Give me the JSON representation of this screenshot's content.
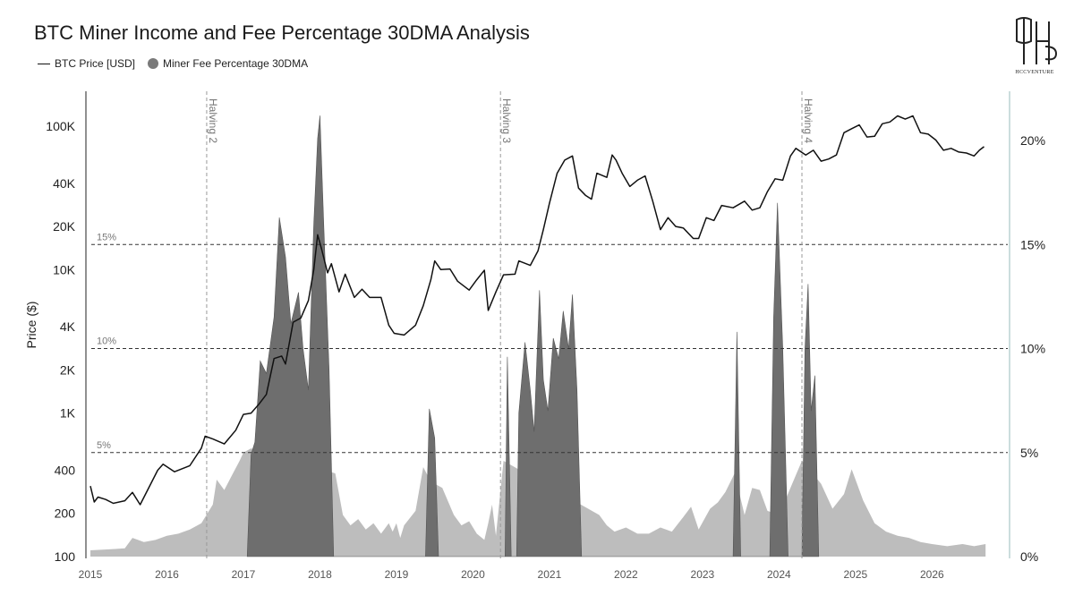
{
  "title": "BTC Miner Income and Fee Percentage 30DMA Analysis",
  "legend": [
    {
      "label": "BTC Price [USD]",
      "kind": "line"
    },
    {
      "label": "Miner Fee Percentage 30DMA",
      "kind": "dot"
    }
  ],
  "logo_text": "HCCVENTURE",
  "colors": {
    "price_line": "#111111",
    "fee_light": "#bdbdbd",
    "fee_dark": "#6e6e6e",
    "ref_line": "#333333",
    "halving_line": "#999999"
  },
  "chart_data": {
    "type": "line",
    "x_range": [
      2015.0,
      2026.85
    ],
    "x_ticks": [
      "2015",
      "2016",
      "2017",
      "2018",
      "2019",
      "2020",
      "2021",
      "2022",
      "2023",
      "2024",
      "2025",
      "2026"
    ],
    "y_left": {
      "label": "Price ($)",
      "scale": "log",
      "range": [
        100,
        200000
      ],
      "ticks": [
        {
          "v": 100,
          "t": "100"
        },
        {
          "v": 200,
          "t": "200"
        },
        {
          "v": 400,
          "t": "400"
        },
        {
          "v": 1000,
          "t": "1K"
        },
        {
          "v": 2000,
          "t": "2K"
        },
        {
          "v": 4000,
          "t": "4K"
        },
        {
          "v": 10000,
          "t": "10K"
        },
        {
          "v": 20000,
          "t": "20K"
        },
        {
          "v": 40000,
          "t": "40K"
        },
        {
          "v": 100000,
          "t": "100K"
        }
      ]
    },
    "y_right": {
      "range": [
        0,
        22.5
      ],
      "ticks": [
        {
          "v": 0,
          "t": "0%"
        },
        {
          "v": 5,
          "t": "5%"
        },
        {
          "v": 10,
          "t": "10%"
        },
        {
          "v": 15,
          "t": "15%"
        },
        {
          "v": 20,
          "t": "20%"
        }
      ]
    },
    "reference_lines": [
      {
        "v": 5,
        "label": "5%"
      },
      {
        "v": 10,
        "label": "10%"
      },
      {
        "v": 15,
        "label": "15%"
      }
    ],
    "halvings": [
      {
        "x": 2016.52,
        "label": "Halving 2"
      },
      {
        "x": 2020.36,
        "label": "Halving 3"
      },
      {
        "x": 2024.3,
        "label": "Halving 4"
      }
    ],
    "series": [
      {
        "name": "BTC Price [USD]",
        "points": [
          [
            2015.0,
            310
          ],
          [
            2015.05,
            240
          ],
          [
            2015.1,
            260
          ],
          [
            2015.2,
            250
          ],
          [
            2015.3,
            235
          ],
          [
            2015.45,
            245
          ],
          [
            2015.55,
            280
          ],
          [
            2015.65,
            230
          ],
          [
            2015.8,
            330
          ],
          [
            2015.88,
            400
          ],
          [
            2015.95,
            440
          ],
          [
            2016.1,
            390
          ],
          [
            2016.3,
            430
          ],
          [
            2016.45,
            570
          ],
          [
            2016.5,
            690
          ],
          [
            2016.6,
            660
          ],
          [
            2016.75,
            610
          ],
          [
            2016.9,
            760
          ],
          [
            2017.0,
            980
          ],
          [
            2017.1,
            1000
          ],
          [
            2017.2,
            1150
          ],
          [
            2017.3,
            1350
          ],
          [
            2017.4,
            2400
          ],
          [
            2017.5,
            2500
          ],
          [
            2017.55,
            2200
          ],
          [
            2017.65,
            4300
          ],
          [
            2017.75,
            4600
          ],
          [
            2017.85,
            6100
          ],
          [
            2017.92,
            10000
          ],
          [
            2017.97,
            17500
          ],
          [
            2018.02,
            14000
          ],
          [
            2018.1,
            9500
          ],
          [
            2018.15,
            11000
          ],
          [
            2018.25,
            7000
          ],
          [
            2018.33,
            9300
          ],
          [
            2018.45,
            6400
          ],
          [
            2018.55,
            7300
          ],
          [
            2018.65,
            6400
          ],
          [
            2018.8,
            6400
          ],
          [
            2018.9,
            4100
          ],
          [
            2018.97,
            3600
          ],
          [
            2019.1,
            3500
          ],
          [
            2019.25,
            4100
          ],
          [
            2019.35,
            5600
          ],
          [
            2019.45,
            8500
          ],
          [
            2019.5,
            11500
          ],
          [
            2019.58,
            10000
          ],
          [
            2019.7,
            10100
          ],
          [
            2019.8,
            8300
          ],
          [
            2019.95,
            7200
          ],
          [
            2020.05,
            8500
          ],
          [
            2020.15,
            9900
          ],
          [
            2020.2,
            5200
          ],
          [
            2020.3,
            7000
          ],
          [
            2020.4,
            9200
          ],
          [
            2020.55,
            9300
          ],
          [
            2020.6,
            11500
          ],
          [
            2020.75,
            10700
          ],
          [
            2020.85,
            13500
          ],
          [
            2020.92,
            19000
          ],
          [
            2021.0,
            29000
          ],
          [
            2021.1,
            47000
          ],
          [
            2021.2,
            58000
          ],
          [
            2021.3,
            62000
          ],
          [
            2021.38,
            37000
          ],
          [
            2021.47,
            33000
          ],
          [
            2021.55,
            31000
          ],
          [
            2021.62,
            47000
          ],
          [
            2021.75,
            44000
          ],
          [
            2021.82,
            63000
          ],
          [
            2021.87,
            58000
          ],
          [
            2021.95,
            47000
          ],
          [
            2022.05,
            38000
          ],
          [
            2022.15,
            42000
          ],
          [
            2022.25,
            45000
          ],
          [
            2022.35,
            30000
          ],
          [
            2022.45,
            19000
          ],
          [
            2022.55,
            23000
          ],
          [
            2022.65,
            20000
          ],
          [
            2022.75,
            19500
          ],
          [
            2022.88,
            16500
          ],
          [
            2022.95,
            16500
          ],
          [
            2023.05,
            23000
          ],
          [
            2023.15,
            22000
          ],
          [
            2023.25,
            28000
          ],
          [
            2023.4,
            27000
          ],
          [
            2023.55,
            30000
          ],
          [
            2023.65,
            26000
          ],
          [
            2023.75,
            27000
          ],
          [
            2023.85,
            35000
          ],
          [
            2023.95,
            43000
          ],
          [
            2024.05,
            42000
          ],
          [
            2024.15,
            62000
          ],
          [
            2024.22,
            70000
          ],
          [
            2024.35,
            63000
          ],
          [
            2024.45,
            68000
          ],
          [
            2024.55,
            57000
          ],
          [
            2024.65,
            59000
          ],
          [
            2024.75,
            63000
          ],
          [
            2024.85,
            90000
          ],
          [
            2024.95,
            96000
          ],
          [
            2025.05,
            102000
          ],
          [
            2025.15,
            84000
          ],
          [
            2025.25,
            85000
          ],
          [
            2025.35,
            104000
          ],
          [
            2025.45,
            107000
          ],
          [
            2025.55,
            118000
          ],
          [
            2025.65,
            112000
          ],
          [
            2025.75,
            118000
          ],
          [
            2025.85,
            90000
          ],
          [
            2025.95,
            88000
          ],
          [
            2026.05,
            80000
          ],
          [
            2026.15,
            68000
          ],
          [
            2026.25,
            70000
          ],
          [
            2026.35,
            66000
          ],
          [
            2026.45,
            65000
          ],
          [
            2026.55,
            62000
          ],
          [
            2026.62,
            68000
          ],
          [
            2026.68,
            72000
          ]
        ]
      },
      {
        "name": "Miner Fee Percentage 30DMA",
        "style": "light",
        "points": [
          [
            2015.0,
            0.3
          ],
          [
            2015.25,
            0.35
          ],
          [
            2015.45,
            0.4
          ],
          [
            2015.55,
            0.9
          ],
          [
            2015.7,
            0.7
          ],
          [
            2015.85,
            0.8
          ],
          [
            2016.0,
            1.0
          ],
          [
            2016.15,
            1.1
          ],
          [
            2016.3,
            1.3
          ],
          [
            2016.45,
            1.6
          ],
          [
            2016.6,
            2.5
          ],
          [
            2016.65,
            3.7
          ],
          [
            2016.75,
            3.2
          ],
          [
            2016.85,
            3.9
          ],
          [
            2016.95,
            4.6
          ],
          [
            2017.0,
            5.0
          ],
          [
            2017.1,
            5.2
          ],
          [
            2018.2,
            4.0
          ],
          [
            2018.3,
            2.0
          ],
          [
            2018.4,
            1.5
          ],
          [
            2018.5,
            1.8
          ],
          [
            2018.6,
            1.3
          ],
          [
            2018.7,
            1.6
          ],
          [
            2018.8,
            1.1
          ],
          [
            2018.9,
            1.6
          ],
          [
            2018.95,
            1.2
          ],
          [
            2019.0,
            1.6
          ],
          [
            2019.05,
            0.9
          ],
          [
            2019.1,
            1.5
          ],
          [
            2019.25,
            2.2
          ],
          [
            2019.35,
            4.3
          ],
          [
            2019.45,
            3.6
          ],
          [
            2019.6,
            3.3
          ],
          [
            2019.75,
            2.0
          ],
          [
            2019.85,
            1.5
          ],
          [
            2019.95,
            1.7
          ],
          [
            2020.05,
            1.1
          ],
          [
            2020.15,
            0.8
          ],
          [
            2020.2,
            1.6
          ],
          [
            2020.25,
            2.5
          ],
          [
            2020.3,
            1.0
          ],
          [
            2020.4,
            4.6
          ],
          [
            2021.65,
            2.0
          ],
          [
            2021.75,
            1.5
          ],
          [
            2021.85,
            1.2
          ],
          [
            2022.0,
            1.4
          ],
          [
            2022.15,
            1.1
          ],
          [
            2022.3,
            1.1
          ],
          [
            2022.45,
            1.4
          ],
          [
            2022.6,
            1.2
          ],
          [
            2022.75,
            1.9
          ],
          [
            2022.85,
            2.4
          ],
          [
            2022.95,
            1.3
          ],
          [
            2023.1,
            2.3
          ],
          [
            2023.2,
            2.6
          ],
          [
            2023.3,
            3.1
          ],
          [
            2023.42,
            4.0
          ],
          [
            2023.55,
            2.0
          ],
          [
            2023.65,
            3.3
          ],
          [
            2023.75,
            3.2
          ],
          [
            2023.85,
            2.2
          ],
          [
            2024.0,
            2.0
          ],
          [
            2024.3,
            4.6
          ],
          [
            2024.55,
            3.5
          ],
          [
            2024.7,
            2.3
          ],
          [
            2024.85,
            3.0
          ],
          [
            2024.95,
            4.2
          ],
          [
            2025.1,
            2.7
          ],
          [
            2025.25,
            1.6
          ],
          [
            2025.4,
            1.2
          ],
          [
            2025.55,
            1.0
          ],
          [
            2025.7,
            0.9
          ],
          [
            2025.85,
            0.7
          ],
          [
            2026.0,
            0.6
          ],
          [
            2026.2,
            0.5
          ],
          [
            2026.4,
            0.6
          ],
          [
            2026.55,
            0.5
          ],
          [
            2026.7,
            0.6
          ]
        ]
      },
      {
        "name": "Miner Fee Percentage 30DMA",
        "style": "dark",
        "points": [
          [
            2017.05,
            0.0
          ],
          [
            2017.1,
            4.9
          ],
          [
            2017.15,
            5.5
          ],
          [
            2017.22,
            9.4
          ],
          [
            2017.3,
            8.8
          ],
          [
            2017.4,
            11.5
          ],
          [
            2017.47,
            16.3
          ],
          [
            2017.55,
            14.4
          ],
          [
            2017.62,
            11.2
          ],
          [
            2017.72,
            12.7
          ],
          [
            2017.78,
            10.0
          ],
          [
            2017.85,
            8.0
          ],
          [
            2017.92,
            16.0
          ],
          [
            2017.97,
            20.1
          ],
          [
            2018.0,
            21.2
          ],
          [
            2018.05,
            16.0
          ],
          [
            2018.12,
            9.0
          ],
          [
            2018.18,
            0.0
          ],
          [
            2019.38,
            0.0
          ],
          [
            2019.43,
            7.1
          ],
          [
            2019.5,
            5.7
          ],
          [
            2019.55,
            0.0
          ],
          [
            2020.42,
            0.0
          ],
          [
            2020.45,
            9.6
          ],
          [
            2020.5,
            0.0
          ],
          [
            2020.57,
            0.0
          ],
          [
            2020.6,
            6.9
          ],
          [
            2020.68,
            10.3
          ],
          [
            2020.75,
            8.0
          ],
          [
            2020.8,
            6.0
          ],
          [
            2020.87,
            12.8
          ],
          [
            2020.92,
            8.5
          ],
          [
            2020.98,
            7.0
          ],
          [
            2021.05,
            10.5
          ],
          [
            2021.12,
            9.5
          ],
          [
            2021.18,
            11.8
          ],
          [
            2021.25,
            10.0
          ],
          [
            2021.3,
            12.6
          ],
          [
            2021.36,
            8.0
          ],
          [
            2021.42,
            0.0
          ],
          [
            2023.4,
            0.0
          ],
          [
            2023.45,
            10.8
          ],
          [
            2023.5,
            0.0
          ],
          [
            2023.88,
            0.0
          ],
          [
            2023.93,
            11.5
          ],
          [
            2023.98,
            17.0
          ],
          [
            2024.05,
            10.0
          ],
          [
            2024.12,
            0.0
          ],
          [
            2024.3,
            0.0
          ],
          [
            2024.34,
            10.0
          ],
          [
            2024.38,
            13.1
          ],
          [
            2024.42,
            7.0
          ],
          [
            2024.47,
            8.7
          ],
          [
            2024.52,
            0.0
          ]
        ]
      }
    ]
  }
}
